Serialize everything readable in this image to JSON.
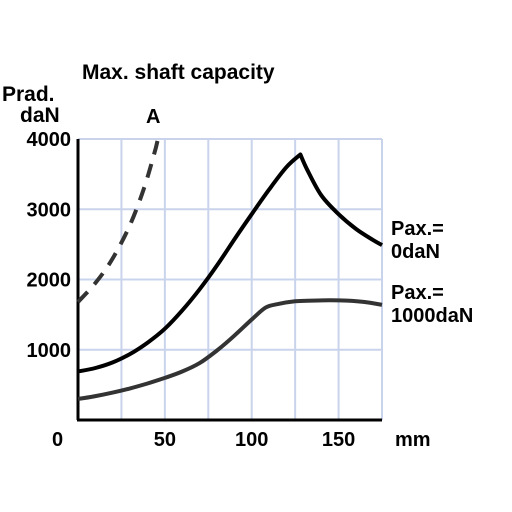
{
  "chart_data": {
    "type": "line",
    "title": "Max. shaft capacity",
    "ylabel_line1": "Prad.",
    "ylabel_line2": "daN",
    "xlabel": "mm",
    "xlim": [
      0,
      175
    ],
    "ylim": [
      0,
      4000
    ],
    "grid": true,
    "x_ticks": [
      {
        "value": 50,
        "label": "50"
      },
      {
        "value": 100,
        "label": "100"
      },
      {
        "value": 150,
        "label": "150"
      }
    ],
    "x_grid": [
      25,
      50,
      75,
      100,
      125,
      150,
      175
    ],
    "y_ticks": [
      {
        "value": 1000,
        "label": "1000"
      },
      {
        "value": 2000,
        "label": "2000"
      },
      {
        "value": 3000,
        "label": "3000"
      },
      {
        "value": 4000,
        "label": "4000"
      }
    ],
    "origin_label": "0",
    "series": [
      {
        "name_line1": "Pax.=",
        "name_line2": "0daN",
        "color": "#000000",
        "dashed": false,
        "x": [
          0,
          10,
          20,
          30,
          40,
          50,
          60,
          70,
          80,
          90,
          100,
          110,
          120,
          128,
          132,
          140,
          150,
          160,
          170,
          175
        ],
        "y": [
          690,
          740,
          820,
          940,
          1100,
          1300,
          1560,
          1860,
          2200,
          2570,
          2930,
          3280,
          3600,
          3780,
          3560,
          3200,
          2930,
          2720,
          2560,
          2490
        ]
      },
      {
        "name_line1": "Pax.=",
        "name_line2": "1000daN",
        "color": "#333333",
        "dashed": false,
        "x": [
          0,
          10,
          20,
          30,
          40,
          50,
          60,
          70,
          80,
          90,
          100,
          108,
          115,
          125,
          135,
          145,
          155,
          165,
          175
        ],
        "y": [
          300,
          340,
          390,
          450,
          520,
          600,
          690,
          810,
          990,
          1200,
          1430,
          1600,
          1650,
          1690,
          1700,
          1705,
          1700,
          1680,
          1640
        ]
      },
      {
        "name_line1": "A",
        "name_line2": "",
        "color": "#333333",
        "dashed": true,
        "x": [
          0,
          10,
          20,
          30,
          38,
          44,
          46
        ],
        "y": [
          1680,
          1950,
          2300,
          2780,
          3300,
          3800,
          4000
        ]
      }
    ]
  }
}
